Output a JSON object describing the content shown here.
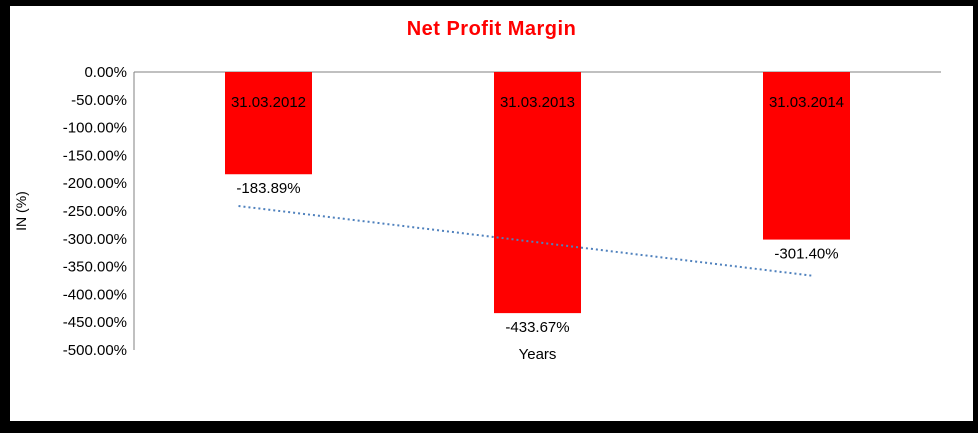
{
  "chart_data": {
    "type": "bar",
    "title": "Net Profit Margin",
    "xlabel": "Years",
    "ylabel": "IN (%)",
    "categories": [
      "31.03.2012",
      "31.03.2013",
      "31.03.2014"
    ],
    "values": [
      -183.89,
      -433.67,
      -301.4
    ],
    "value_labels": [
      "-183.89%",
      "-433.67%",
      "-301.40%"
    ],
    "ylim": [
      -500,
      0
    ],
    "ytick_labels": [
      "0.00%",
      "-50.00%",
      "-100.00%",
      "-150.00%",
      "-200.00%",
      "-250.00%",
      "-300.00%",
      "-350.00%",
      "-400.00%",
      "-450.00%",
      "-500.00%"
    ],
    "grid": false,
    "legend": "none",
    "bar_color": "#FF0000",
    "title_color": "#FF0000",
    "text_color": "#000000",
    "axis_color": "#808080",
    "trendline": {
      "type": "linear",
      "style": "dotted",
      "color": "#4F81BD",
      "start_value": -247.57,
      "end_value": -365.08
    }
  }
}
